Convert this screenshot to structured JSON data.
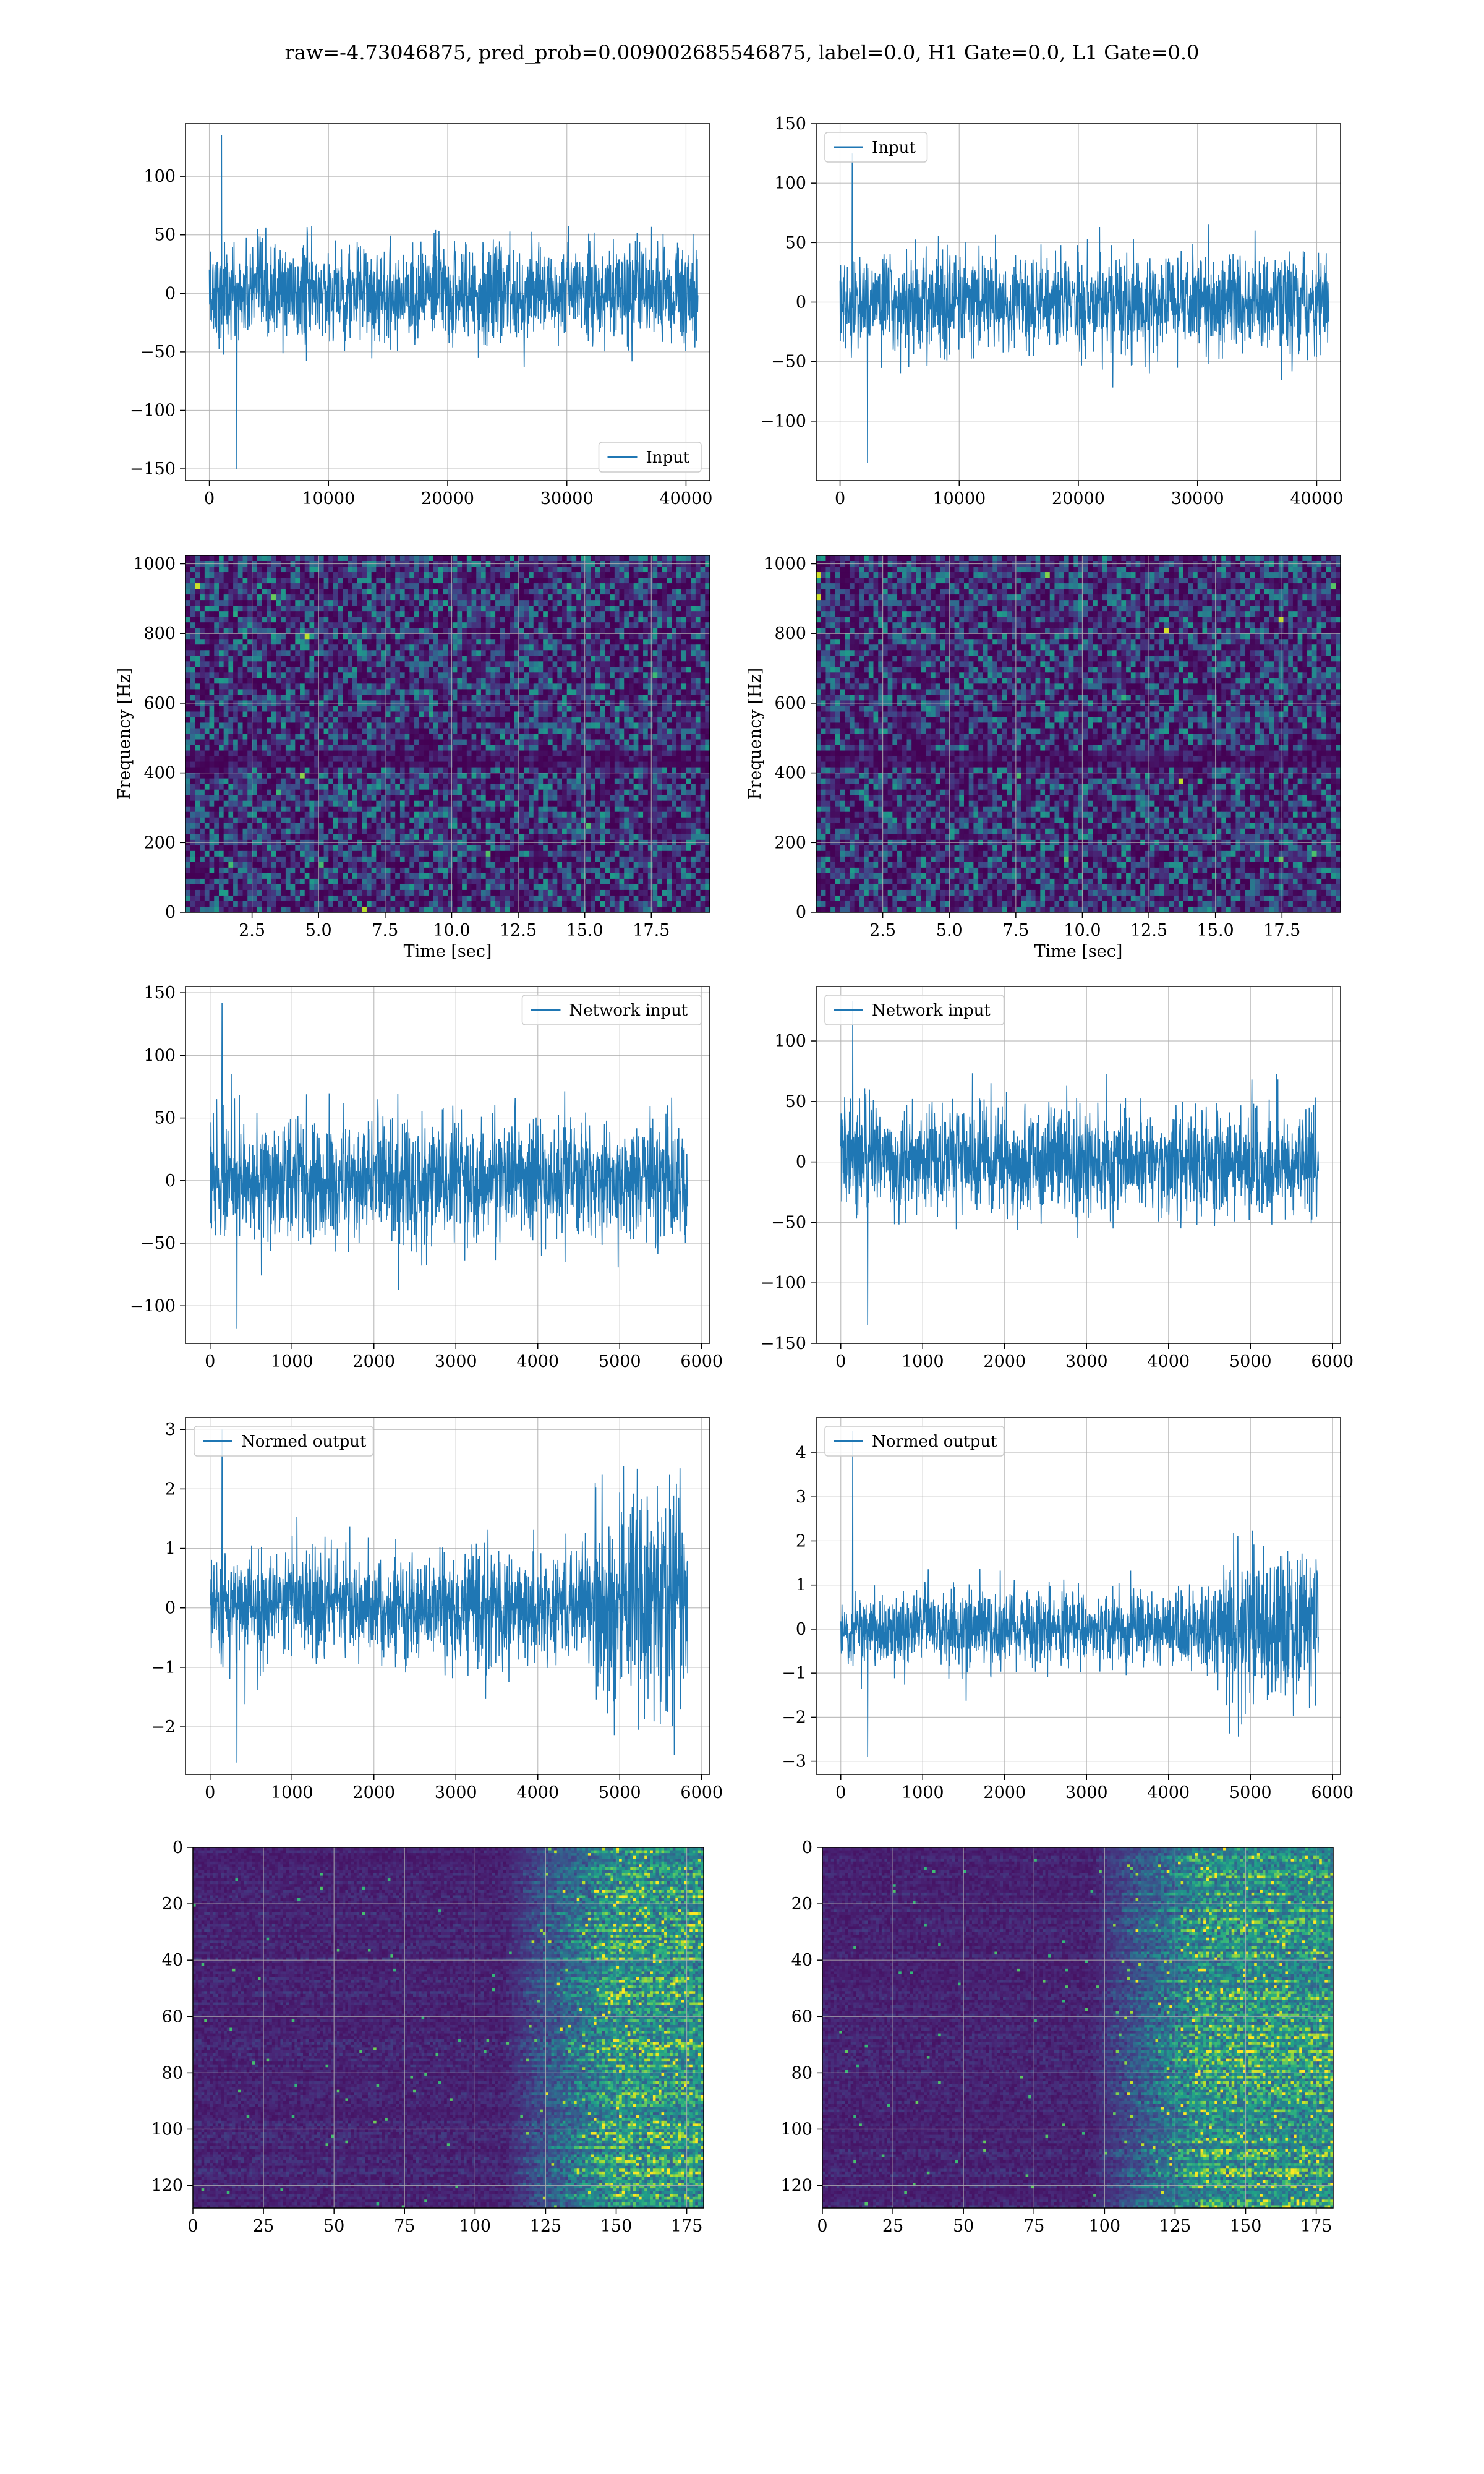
{
  "figure_title": "raw=-4.73046875, pred_prob=0.009002685546875, label=0.0, H1 Gate=0.0, L1 Gate=0.0",
  "colors": {
    "line": "#1f77b4",
    "grid": "#b0b0b0",
    "viridis_low": "#440154",
    "viridis_high": "#fde725"
  },
  "chart_data": [
    {
      "type": "line",
      "title": "",
      "xlabel": "",
      "ylabel": "",
      "series": [
        {
          "name": "Input"
        }
      ],
      "legend": "lower-right",
      "grid": true,
      "xlim": [
        -2000,
        42000
      ],
      "ylim": [
        -160,
        145
      ],
      "xticks": [
        0,
        10000,
        20000,
        30000,
        40000
      ],
      "xticklabels": [
        "0",
        "10000",
        "20000",
        "30000",
        "40000"
      ],
      "yticks": [
        -150,
        -100,
        -50,
        0,
        50,
        100
      ],
      "yticklabels": [
        "−150",
        "−100",
        "−50",
        "0",
        "50",
        "100"
      ],
      "x_extent": [
        0,
        41000
      ],
      "envelope": [
        -150,
        135
      ],
      "noise_scale": 21
    },
    {
      "type": "line",
      "title": "",
      "xlabel": "",
      "ylabel": "",
      "series": [
        {
          "name": "Input"
        }
      ],
      "legend": "top-left",
      "grid": true,
      "xlim": [
        -2000,
        42000
      ],
      "ylim": [
        -150,
        150
      ],
      "xticks": [
        0,
        10000,
        20000,
        30000,
        40000
      ],
      "xticklabels": [
        "0",
        "10000",
        "20000",
        "30000",
        "40000"
      ],
      "yticks": [
        -100,
        -50,
        0,
        50,
        100,
        150
      ],
      "yticklabels": [
        "−100",
        "−50",
        "0",
        "50",
        "100",
        "150"
      ],
      "x_extent": [
        0,
        41000
      ],
      "envelope": [
        -135,
        125
      ],
      "noise_scale": 20
    },
    {
      "type": "heatmap",
      "title": "",
      "xlabel": "Time [sec]",
      "ylabel": "Frequency [Hz]",
      "grid": true,
      "xlim": [
        0,
        19.7
      ],
      "ylim": [
        0,
        1024
      ],
      "xticks": [
        2.5,
        5.0,
        7.5,
        10.0,
        12.5,
        15.0,
        17.5
      ],
      "xticklabels": [
        "2.5",
        "5.0",
        "7.5",
        "10.0",
        "12.5",
        "15.0",
        "17.5"
      ],
      "yticks": [
        0,
        200,
        400,
        600,
        800,
        1000
      ],
      "yticklabels": [
        "0",
        "200",
        "400",
        "600",
        "800",
        "1000"
      ],
      "colormap": "viridis",
      "rows": 64,
      "cols": 110,
      "seed": 11
    },
    {
      "type": "heatmap",
      "title": "",
      "xlabel": "Time [sec]",
      "ylabel": "Frequency [Hz]",
      "grid": true,
      "xlim": [
        0,
        19.7
      ],
      "ylim": [
        0,
        1024
      ],
      "xticks": [
        2.5,
        5.0,
        7.5,
        10.0,
        12.5,
        15.0,
        17.5
      ],
      "xticklabels": [
        "2.5",
        "5.0",
        "7.5",
        "10.0",
        "12.5",
        "15.0",
        "17.5"
      ],
      "yticks": [
        0,
        200,
        400,
        600,
        800,
        1000
      ],
      "yticklabels": [
        "0",
        "200",
        "400",
        "600",
        "800",
        "1000"
      ],
      "colormap": "viridis",
      "rows": 64,
      "cols": 110,
      "seed": 23
    },
    {
      "type": "line",
      "title": "",
      "xlabel": "",
      "ylabel": "",
      "series": [
        {
          "name": "Network input"
        }
      ],
      "legend": "top-right",
      "grid": true,
      "xlim": [
        -300,
        6100
      ],
      "ylim": [
        -130,
        155
      ],
      "xticks": [
        0,
        1000,
        2000,
        3000,
        4000,
        5000,
        6000
      ],
      "xticklabels": [
        "0",
        "1000",
        "2000",
        "3000",
        "4000",
        "5000",
        "6000"
      ],
      "yticks": [
        -100,
        -50,
        0,
        50,
        100,
        150
      ],
      "yticklabels": [
        "−100",
        "−50",
        "0",
        "50",
        "100",
        "150"
      ],
      "x_extent": [
        0,
        5830
      ],
      "envelope": [
        -118,
        142
      ],
      "noise_scale": 24
    },
    {
      "type": "line",
      "title": "",
      "xlabel": "",
      "ylabel": "",
      "series": [
        {
          "name": "Network input"
        }
      ],
      "legend": "top-left",
      "grid": true,
      "xlim": [
        -300,
        6100
      ],
      "ylim": [
        -150,
        145
      ],
      "xticks": [
        0,
        1000,
        2000,
        3000,
        4000,
        5000,
        6000
      ],
      "xticklabels": [
        "0",
        "1000",
        "2000",
        "3000",
        "4000",
        "5000",
        "6000"
      ],
      "yticks": [
        -150,
        -100,
        -50,
        0,
        50,
        100
      ],
      "yticklabels": [
        "−150",
        "−100",
        "−50",
        "0",
        "50",
        "100"
      ],
      "x_extent": [
        0,
        5830
      ],
      "envelope": [
        -135,
        133
      ],
      "noise_scale": 22
    },
    {
      "type": "line",
      "title": "",
      "xlabel": "",
      "ylabel": "",
      "series": [
        {
          "name": "Normed output"
        }
      ],
      "legend": "top-left",
      "grid": true,
      "xlim": [
        -300,
        6100
      ],
      "ylim": [
        -2.8,
        3.2
      ],
      "xticks": [
        0,
        1000,
        2000,
        3000,
        4000,
        5000,
        6000
      ],
      "xticklabels": [
        "0",
        "1000",
        "2000",
        "3000",
        "4000",
        "5000",
        "6000"
      ],
      "yticks": [
        -2,
        -1,
        0,
        1,
        2,
        3
      ],
      "yticklabels": [
        "−2",
        "−1",
        "0",
        "1",
        "2",
        "3"
      ],
      "x_extent": [
        0,
        5830
      ],
      "envelope": [
        -2.6,
        3.0
      ],
      "noise_scale": 0.45,
      "loud_after": 4700
    },
    {
      "type": "line",
      "title": "",
      "xlabel": "",
      "ylabel": "",
      "series": [
        {
          "name": "Normed output"
        }
      ],
      "legend": "top-left",
      "grid": true,
      "xlim": [
        -300,
        6100
      ],
      "ylim": [
        -3.3,
        4.8
      ],
      "xticks": [
        0,
        1000,
        2000,
        3000,
        4000,
        5000,
        6000
      ],
      "xticklabels": [
        "0",
        "1000",
        "2000",
        "3000",
        "4000",
        "5000",
        "6000"
      ],
      "yticks": [
        -3,
        -2,
        -1,
        0,
        1,
        2,
        3,
        4
      ],
      "yticklabels": [
        "−3",
        "−2",
        "−1",
        "0",
        "1",
        "2",
        "3",
        "4"
      ],
      "x_extent": [
        0,
        5830
      ],
      "envelope": [
        -2.9,
        4.5
      ],
      "noise_scale": 0.42,
      "loud_after": 4600
    },
    {
      "type": "heatmap",
      "title": "",
      "xlabel": "",
      "ylabel": "",
      "grid": true,
      "xlim": [
        0,
        181
      ],
      "ylim": [
        128,
        0
      ],
      "xticks": [
        0,
        25,
        50,
        75,
        100,
        125,
        150,
        175
      ],
      "xticklabels": [
        "0",
        "25",
        "50",
        "75",
        "100",
        "125",
        "150",
        "175"
      ],
      "yticks": [
        0,
        20,
        40,
        60,
        80,
        100,
        120
      ],
      "yticklabels": [
        "0",
        "20",
        "40",
        "60",
        "80",
        "100",
        "120"
      ],
      "colormap": "viridis",
      "rows": 128,
      "cols": 181,
      "seed": 37,
      "active_after": 110
    },
    {
      "type": "heatmap",
      "title": "",
      "xlabel": "",
      "ylabel": "",
      "grid": true,
      "xlim": [
        0,
        181
      ],
      "ylim": [
        128,
        0
      ],
      "xticks": [
        0,
        25,
        50,
        75,
        100,
        125,
        150,
        175
      ],
      "xticklabels": [
        "0",
        "25",
        "50",
        "75",
        "100",
        "125",
        "150",
        "175"
      ],
      "yticks": [
        0,
        20,
        40,
        60,
        80,
        100,
        120
      ],
      "yticklabels": [
        "0",
        "20",
        "40",
        "60",
        "80",
        "100",
        "120"
      ],
      "colormap": "viridis",
      "rows": 128,
      "cols": 181,
      "seed": 53,
      "active_after": 95
    }
  ]
}
